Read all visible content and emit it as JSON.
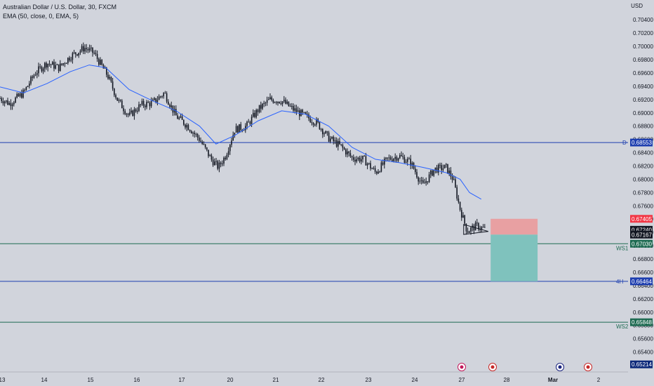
{
  "header": {
    "symbol_title": "Australian Dollar / U.S. Dollar, 30, FXCM",
    "indicator": "EMA (50, close, 0, EMA, 5)",
    "currency": "USD"
  },
  "colors": {
    "background": "#d1d4dc",
    "candle": "#131722",
    "ema": "#2962ff",
    "blue_level": "#1e3fb0",
    "green_level": "#1e6b52",
    "stop_zone": "#e8a0a2",
    "target_zone": "#7fc2bd"
  },
  "chart_data": {
    "type": "candlestick",
    "title": "Australian Dollar / U.S. Dollar, 30, FXCM",
    "ylim": [
      0.651,
      0.7055
    ],
    "y_ticks": [
      "0.70400",
      "0.70200",
      "0.70000",
      "0.69800",
      "0.69600",
      "0.69400",
      "0.69200",
      "0.69000",
      "0.68800",
      "0.68600",
      "0.68400",
      "0.68200",
      "0.68000",
      "0.67800",
      "0.67600",
      "0.67400",
      "0.67200",
      "0.67000",
      "0.66800",
      "0.66600",
      "0.66400",
      "0.66200",
      "0.66000",
      "0.65800",
      "0.65600",
      "0.65400"
    ],
    "x_ticks": [
      "13",
      "14",
      "15",
      "16",
      "17",
      "20",
      "21",
      "22",
      "23",
      "24",
      "27",
      "28",
      "Mar",
      "2"
    ],
    "close_path": [
      {
        "x": 0,
        "y": 0.6922
      },
      {
        "x": 0.4,
        "y": 0.6914
      },
      {
        "x": 1,
        "y": 0.693
      },
      {
        "x": 1.5,
        "y": 0.696
      },
      {
        "x": 2,
        "y": 0.6975
      },
      {
        "x": 2.5,
        "y": 0.6968
      },
      {
        "x": 3,
        "y": 0.6985
      },
      {
        "x": 3.6,
        "y": 0.6998
      },
      {
        "x": 4,
        "y": 0.699
      },
      {
        "x": 4.6,
        "y": 0.6955
      },
      {
        "x": 5,
        "y": 0.692
      },
      {
        "x": 5.5,
        "y": 0.6895
      },
      {
        "x": 6,
        "y": 0.6912
      },
      {
        "x": 6.5,
        "y": 0.6915
      },
      {
        "x": 7,
        "y": 0.693
      },
      {
        "x": 7.5,
        "y": 0.6895
      },
      {
        "x": 8,
        "y": 0.688
      },
      {
        "x": 8.5,
        "y": 0.686
      },
      {
        "x": 9,
        "y": 0.683
      },
      {
        "x": 9.3,
        "y": 0.6818
      },
      {
        "x": 9.6,
        "y": 0.6835
      },
      {
        "x": 10,
        "y": 0.6875
      },
      {
        "x": 10.5,
        "y": 0.688
      },
      {
        "x": 11,
        "y": 0.6905
      },
      {
        "x": 11.5,
        "y": 0.692
      },
      {
        "x": 12,
        "y": 0.6918
      },
      {
        "x": 12.5,
        "y": 0.6905
      },
      {
        "x": 13,
        "y": 0.6895
      },
      {
        "x": 13.5,
        "y": 0.6885
      },
      {
        "x": 14,
        "y": 0.6862
      },
      {
        "x": 14.5,
        "y": 0.685
      },
      {
        "x": 15,
        "y": 0.6832
      },
      {
        "x": 15.5,
        "y": 0.683
      },
      {
        "x": 16,
        "y": 0.681
      },
      {
        "x": 16.5,
        "y": 0.683
      },
      {
        "x": 17,
        "y": 0.6835
      },
      {
        "x": 17.5,
        "y": 0.6825
      },
      {
        "x": 18,
        "y": 0.679
      },
      {
        "x": 18.5,
        "y": 0.6815
      },
      {
        "x": 19,
        "y": 0.6818
      },
      {
        "x": 19.3,
        "y": 0.68
      },
      {
        "x": 19.6,
        "y": 0.6755
      },
      {
        "x": 19.9,
        "y": 0.6722
      },
      {
        "x": 20.3,
        "y": 0.673
      },
      {
        "x": 20.7,
        "y": 0.6724
      }
    ],
    "ema50_path": [
      {
        "x": 0,
        "y": 0.6939
      },
      {
        "x": 1,
        "y": 0.693
      },
      {
        "x": 2,
        "y": 0.6944
      },
      {
        "x": 3,
        "y": 0.6962
      },
      {
        "x": 3.8,
        "y": 0.6972
      },
      {
        "x": 4.5,
        "y": 0.6968
      },
      {
        "x": 5.5,
        "y": 0.6935
      },
      {
        "x": 6.5,
        "y": 0.6918
      },
      {
        "x": 7.5,
        "y": 0.6903
      },
      {
        "x": 8.5,
        "y": 0.688
      },
      {
        "x": 9.2,
        "y": 0.6853
      },
      {
        "x": 10,
        "y": 0.6866
      },
      {
        "x": 11,
        "y": 0.6888
      },
      {
        "x": 12,
        "y": 0.6903
      },
      {
        "x": 13,
        "y": 0.6898
      },
      {
        "x": 14,
        "y": 0.688
      },
      {
        "x": 15,
        "y": 0.6848
      },
      {
        "x": 16,
        "y": 0.683
      },
      {
        "x": 17,
        "y": 0.6825
      },
      {
        "x": 18,
        "y": 0.6818
      },
      {
        "x": 19,
        "y": 0.681
      },
      {
        "x": 19.6,
        "y": 0.68
      },
      {
        "x": 20,
        "y": 0.678
      },
      {
        "x": 20.5,
        "y": 0.677
      }
    ],
    "levels": [
      {
        "name": "D",
        "price": 0.68553,
        "label": "0.68553",
        "color": "#1e3fb0"
      },
      {
        "name": "WS1",
        "price": 0.6703,
        "label": "0.67030",
        "color": "#1e6b52"
      },
      {
        "name": "4H",
        "price": 0.66464,
        "label": "0.66464",
        "color": "#1e3fb0"
      },
      {
        "name": "WS2",
        "price": 0.65848,
        "label": "0.65848",
        "color": "#1e6b52"
      }
    ],
    "position": {
      "x_start": 20.9,
      "x_end": 22.9,
      "entry": 0.67167,
      "stop": 0.67405,
      "target": 0.66464
    },
    "price_tags": [
      {
        "label": "0.67405",
        "price": 0.67405,
        "bg": "#f23645",
        "fg": "#ffffff"
      },
      {
        "label": "0.67240",
        "price": 0.6724,
        "bg": "#131722",
        "fg": "#ffffff"
      },
      {
        "label": "0.67167",
        "price": 0.67167,
        "bg": "#131722",
        "fg": "#ffffff"
      },
      {
        "label": "0.65214",
        "price": 0.65214,
        "bg": "#0d2a7a",
        "fg": "#ffffff"
      }
    ],
    "triangle": {
      "x0": 19.75,
      "x1": 20.8,
      "top": 0.6732,
      "bottom": 0.6717,
      "apex": 0.67215
    },
    "x_range": [
      0,
      27.5
    ]
  }
}
